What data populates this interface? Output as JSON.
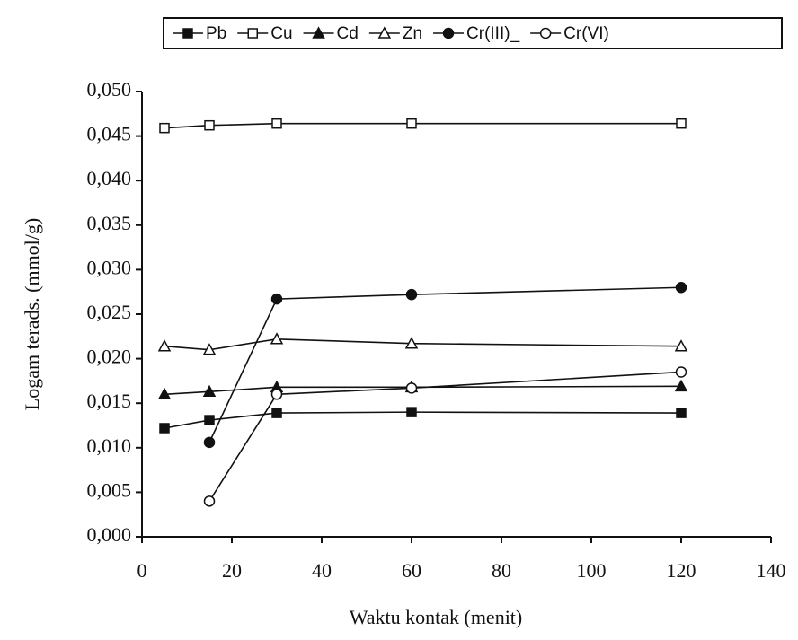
{
  "chart_data": {
    "type": "line",
    "xlabel": "Waktu kontak (menit)",
    "ylabel": "Logam terads. (mmol/g)",
    "x": [
      5,
      15,
      30,
      60,
      120
    ],
    "series": [
      {
        "name": "Pb",
        "color": "#111111",
        "marker": "square",
        "filled": true,
        "values": [
          0.0122,
          0.0131,
          0.0139,
          0.014,
          0.0139
        ]
      },
      {
        "name": "Cu",
        "color": "#111111",
        "marker": "square",
        "filled": false,
        "values": [
          0.0459,
          0.0462,
          0.0464,
          0.0464,
          0.0464
        ]
      },
      {
        "name": "Cd",
        "color": "#111111",
        "marker": "triangle",
        "filled": true,
        "values": [
          0.016,
          0.0163,
          0.0168,
          0.0168,
          0.0169
        ]
      },
      {
        "name": "Zn",
        "color": "#111111",
        "marker": "triangle",
        "filled": false,
        "values": [
          0.0214,
          0.021,
          0.0222,
          0.0217,
          0.0214
        ]
      },
      {
        "name": "Cr(III)_",
        "color": "#111111",
        "marker": "circle",
        "filled": true,
        "values": [
          null,
          0.0106,
          0.0267,
          0.0272,
          0.028
        ]
      },
      {
        "name": "Cr(VI)",
        "color": "#111111",
        "marker": "circle",
        "filled": false,
        "values": [
          null,
          0.004,
          0.016,
          0.0167,
          0.0185
        ]
      }
    ],
    "xlim": [
      0,
      140
    ],
    "xticks": [
      0,
      20,
      40,
      60,
      80,
      100,
      120,
      140
    ],
    "ylim": [
      0,
      0.05
    ],
    "yticks": [
      {
        "value": 0,
        "label": "0,000"
      },
      {
        "value": 0.005,
        "label": "0,005"
      },
      {
        "value": 0.01,
        "label": "0,010"
      },
      {
        "value": 0.015,
        "label": "0,015"
      },
      {
        "value": 0.02,
        "label": "0,020"
      },
      {
        "value": 0.025,
        "label": "0,025"
      },
      {
        "value": 0.03,
        "label": "0,030"
      },
      {
        "value": 0.035,
        "label": "0,035"
      },
      {
        "value": 0.04,
        "label": "0,040"
      },
      {
        "value": 0.045,
        "label": "0,045"
      },
      {
        "value": 0.05,
        "label": "0,050"
      }
    ],
    "grid": false,
    "legend": "top"
  }
}
